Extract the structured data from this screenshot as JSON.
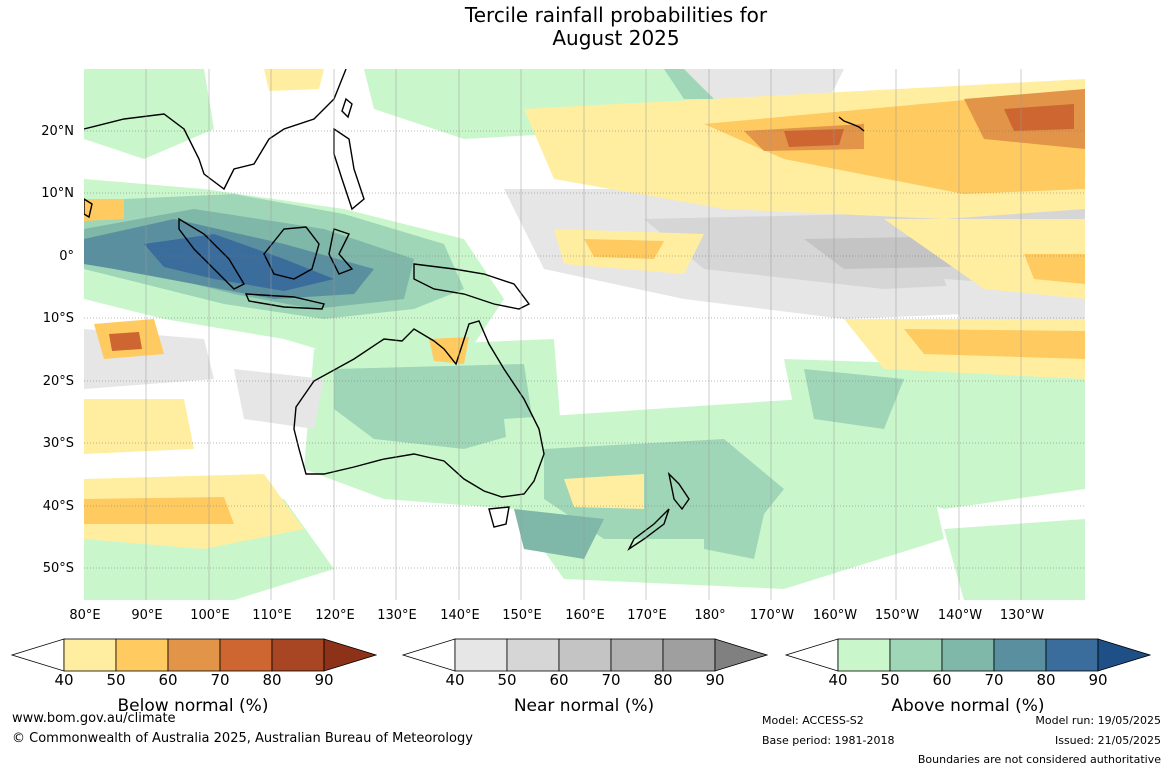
{
  "title": {
    "line1": "Tercile rainfall probabilities for",
    "line2": "August 2025"
  },
  "map": {
    "latitude_labels": [
      "20°N",
      "10°N",
      "0°",
      "10°S",
      "20°S",
      "30°S",
      "40°S",
      "50°S"
    ],
    "longitude_labels": [
      "80°E",
      "90°E",
      "100°E",
      "110°E",
      "120°E",
      "130°E",
      "140°E",
      "150°E",
      "160°E",
      "170°E",
      "180°",
      "170°W",
      "160°W",
      "150°W",
      "140°W",
      "130°W"
    ]
  },
  "colorbars": [
    {
      "label": "Below normal (%)",
      "ticks": [
        "40",
        "50",
        "60",
        "70",
        "80",
        "90"
      ],
      "colors": [
        "#ffeea0",
        "#ffca60",
        "#e29448",
        "#cd6630",
        "#a84522",
        "#8d3218"
      ]
    },
    {
      "label": "Near normal (%)",
      "ticks": [
        "40",
        "50",
        "60",
        "70",
        "80",
        "90"
      ],
      "colors": [
        "#e6e6e6",
        "#d6d6d6",
        "#c4c4c4",
        "#b1b1b1",
        "#9f9f9f",
        "#808080"
      ]
    },
    {
      "label": "Above normal (%)",
      "ticks": [
        "40",
        "50",
        "60",
        "70",
        "80",
        "90"
      ],
      "colors": [
        "#c9f7cb",
        "#9fd6b8",
        "#7fb7a8",
        "#5a8fa0",
        "#3a6d9c",
        "#1e4f86"
      ]
    }
  ],
  "footer": {
    "website": "www.bom.gov.au/climate",
    "copyright": "© Commonwealth of Australia 2025, Australian Bureau of Meteorology",
    "model": "Model: ACCESS-S2",
    "base_period": "Base period: 1981-2018",
    "model_run": "Model run: 19/05/2025",
    "issued": "Issued: 21/05/2025",
    "disclaimer": "Boundaries are not considered authoritative"
  }
}
